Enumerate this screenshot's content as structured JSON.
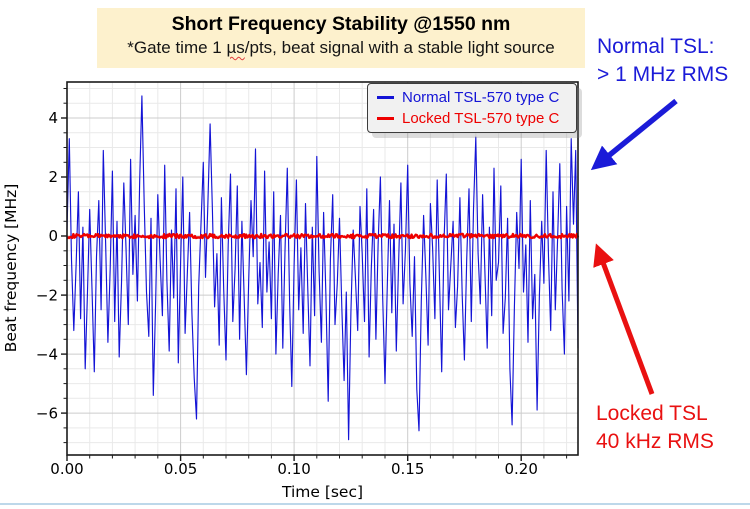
{
  "page": {
    "background": "#ffffff",
    "bottom_rule_color": "#bdd8ea"
  },
  "header": {
    "bg": "#fdf1cd",
    "title": "Short Frequency Stability @1550 nm",
    "subtitle_pre": "*Gate time 1 ",
    "subtitle_wavy": "µs",
    "subtitle_post": "/pts, beat signal with a stable light source"
  },
  "annotations": {
    "normal": {
      "line1": "Normal TSL:",
      "line2": "> 1 MHz RMS",
      "color": "#1b1bd8"
    },
    "locked": {
      "line1": "Locked TSL",
      "line2": "40 kHz RMS",
      "color": "#e91111"
    }
  },
  "chart_data": {
    "type": "line",
    "title": "",
    "xlabel": "Time [sec]",
    "ylabel": "Beat frequency [MHz]",
    "xlim": [
      0,
      0.225
    ],
    "ylim": [
      -7.42,
      5.22
    ],
    "xticks": [
      0,
      0.05,
      0.1,
      0.15,
      0.2
    ],
    "xtick_labels": [
      "0.00",
      "0.05",
      "0.10",
      "0.15",
      "0.20"
    ],
    "yticks": [
      4,
      2,
      0,
      -2,
      -4,
      -6
    ],
    "ytick_labels": [
      "4",
      "2",
      "0",
      "−2",
      "−4",
      "−6"
    ],
    "minor_x_step": 0.01,
    "minor_y_step": 0.5,
    "grid": true,
    "legend": {
      "position": "upper right",
      "entries": [
        {
          "label": "Normal TSL-570 type C",
          "color": "#1414d6"
        },
        {
          "label": "Locked TSL-570 type C",
          "color": "#ee0000"
        }
      ]
    },
    "series": [
      {
        "name": "Normal TSL-570 type C",
        "color": "#1414d6",
        "dt_sec": 0.001,
        "values": [
          0.2,
          3.3,
          -0.8,
          -3.2,
          -1.0,
          1.5,
          -2.8,
          0.3,
          -4.5,
          -2.0,
          0.9,
          -1.8,
          -4.6,
          -0.7,
          1.2,
          -2.5,
          2.9,
          -0.2,
          -3.6,
          -1.1,
          2.2,
          -2.9,
          0.5,
          -4.1,
          -1.6,
          1.8,
          -0.4,
          -3.0,
          2.6,
          -1.3,
          0.7,
          -2.2,
          1.9,
          4.75,
          1.1,
          -1.9,
          -3.4,
          0.6,
          -5.4,
          -2.3,
          1.4,
          -0.8,
          -2.7,
          2.4,
          -1.5,
          -3.9,
          0.2,
          -2.1,
          1.6,
          -4.3,
          -0.9,
          2.0,
          -3.3,
          -1.2,
          0.8,
          -2.6,
          -4.8,
          -6.2,
          -1.7,
          0.4,
          2.5,
          -1.4,
          1.0,
          3.8,
          0.9,
          -2.4,
          -0.6,
          -3.7,
          1.3,
          -1.8,
          -4.2,
          -0.3,
          2.1,
          -2.9,
          -1.1,
          1.7,
          -3.5,
          0.5,
          -2.0,
          -4.7,
          -1.5,
          1.2,
          -0.7,
          2.95,
          -2.3,
          -0.9,
          -3.1,
          2.2,
          -1.9,
          -0.2,
          -2.8,
          1.5,
          -4.0,
          -1.3,
          0.7,
          -3.8,
          -0.5,
          2.3,
          -2.2,
          -5.1,
          -1.0,
          1.9,
          -2.5,
          -0.4,
          -3.3,
          1.1,
          -1.7,
          -4.4,
          0.3,
          -2.7,
          2.7,
          -1.2,
          -3.6,
          0.8,
          -2.0,
          -5.6,
          -0.8,
          1.4,
          -3.0,
          -1.6,
          0.6,
          -2.4,
          -4.9,
          -1.9,
          -6.9,
          -2.6,
          0.2,
          -1.4,
          -3.2,
          1.0,
          -0.6,
          -2.9,
          1.6,
          -4.1,
          -1.1,
          0.9,
          -3.5,
          -0.3,
          2.0,
          -2.1,
          -5.0,
          -1.8,
          1.2,
          -2.6,
          0.4,
          -3.9,
          -0.9,
          1.8,
          -2.3,
          -0.5,
          2.4,
          -1.6,
          -3.4,
          -0.7,
          -5.2,
          -6.6,
          -2.2,
          0.7,
          -1.3,
          -3.7,
          1.1,
          -0.4,
          -2.8,
          1.9,
          -1.5,
          -4.6,
          -0.2,
          2.1,
          -2.5,
          -1.0,
          0.5,
          -3.1,
          -1.7,
          1.3,
          -2.0,
          -4.2,
          -0.8,
          1.6,
          -2.9,
          0.9,
          3.35,
          -0.6,
          -2.3,
          1.4,
          -1.2,
          -3.8,
          0.3,
          -2.7,
          2.3,
          -1.5,
          -0.9,
          1.7,
          -3.3,
          -2.1,
          0.6,
          -4.5,
          -6.4,
          -2.4,
          0.8,
          -1.1,
          2.6,
          -1.9,
          -0.3,
          -3.6,
          1.2,
          -2.8,
          -1.3,
          -5.9,
          -2.0,
          0.5,
          -1.6,
          2.9,
          -0.7,
          -3.2,
          1.5,
          -2.5,
          -0.1,
          2.45,
          -1.8,
          -4.0,
          1.0,
          -2.2,
          3.3,
          0.4,
          2.9,
          -3.8
        ]
      },
      {
        "name": "Locked TSL-570 type C",
        "color": "#ee0000",
        "mean_mhz": 0.0,
        "noise_band_mhz": 0.07,
        "rms_label": "40 kHz RMS"
      }
    ]
  }
}
